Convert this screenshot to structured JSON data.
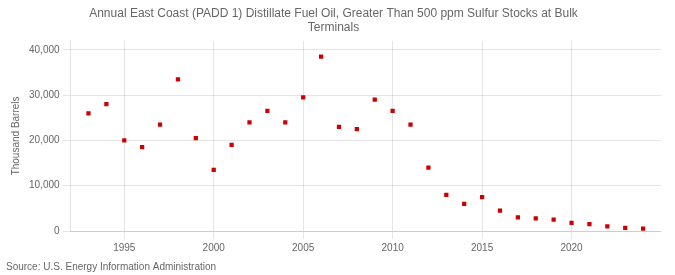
{
  "chart_data": {
    "type": "scatter",
    "title": "Annual East Coast (PADD 1) Distillate Fuel Oil, Greater Than 500 ppm Sulfur Stocks at Bulk\nTerminals",
    "ylabel": "Thousand Barrels",
    "annotation": "Source: U.S. Energy Information Administration",
    "color": "#cc0000",
    "marker": "square",
    "grid": true,
    "x": [
      1993,
      1994,
      1995,
      1996,
      1997,
      1998,
      1999,
      2000,
      2001,
      2002,
      2003,
      2004,
      2005,
      2006,
      2007,
      2008,
      2009,
      2010,
      2011,
      2012,
      2013,
      2014,
      2015,
      2016,
      2017,
      2018,
      2019,
      2020,
      2021,
      2022,
      2023,
      2024
    ],
    "values": [
      26000,
      28000,
      20000,
      18500,
      23500,
      33500,
      20500,
      13500,
      19000,
      24000,
      26500,
      24000,
      29500,
      38500,
      23000,
      22500,
      29000,
      26500,
      23500,
      14000,
      8000,
      6000,
      7500,
      4500,
      3000,
      2800,
      2500,
      1800,
      1500,
      1000,
      700,
      500
    ],
    "xlim": [
      1992,
      2025
    ],
    "xticks": [
      1995,
      2000,
      2005,
      2010,
      2015,
      2020
    ],
    "ylim": [
      0,
      42000
    ],
    "yticks": [
      0,
      {
        "value": 10000,
        "label": "10,000"
      },
      {
        "value": 20000,
        "label": "20,000"
      },
      {
        "value": 30000,
        "label": "30,000"
      },
      {
        "value": 40000,
        "label": "40,000"
      }
    ]
  }
}
